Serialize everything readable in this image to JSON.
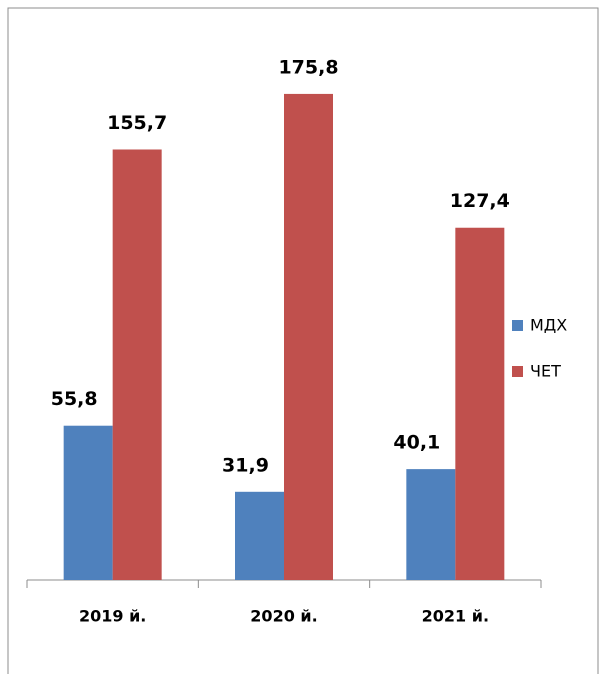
{
  "chart_data": {
    "type": "bar",
    "categories": [
      "2019 й.",
      "2020 й.",
      "2021 й."
    ],
    "series": [
      {
        "name": "МДХ",
        "color": "#4f81bd",
        "values": [
          55.8,
          31.9,
          40.1
        ],
        "value_labels": [
          "55,8",
          "31,9",
          "40,1"
        ]
      },
      {
        "name": "ЧЕТ",
        "color": "#c0504d",
        "values": [
          155.7,
          175.8,
          127.4
        ],
        "value_labels": [
          "155,7",
          "175,8",
          "127,4"
        ]
      }
    ],
    "ylim": [
      0,
      200
    ],
    "grid": false,
    "legend": "right"
  }
}
